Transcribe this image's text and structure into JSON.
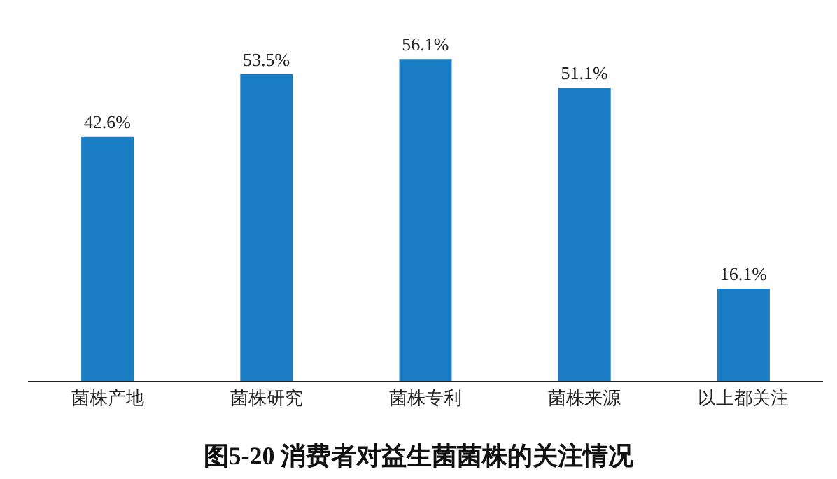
{
  "chart_data": {
    "type": "bar",
    "title": "图5-20 消费者对益生菌菌株的关注情况",
    "categories": [
      "菌株产地",
      "菌株研究",
      "菌株专利",
      "菌株来源",
      "以上都关注"
    ],
    "values": [
      42.6,
      53.5,
      56.1,
      51.1,
      16.1
    ],
    "value_labels": [
      "42.6%",
      "53.5%",
      "56.1%",
      "51.1%",
      "16.1%"
    ],
    "color": "#1a7dc4"
  }
}
